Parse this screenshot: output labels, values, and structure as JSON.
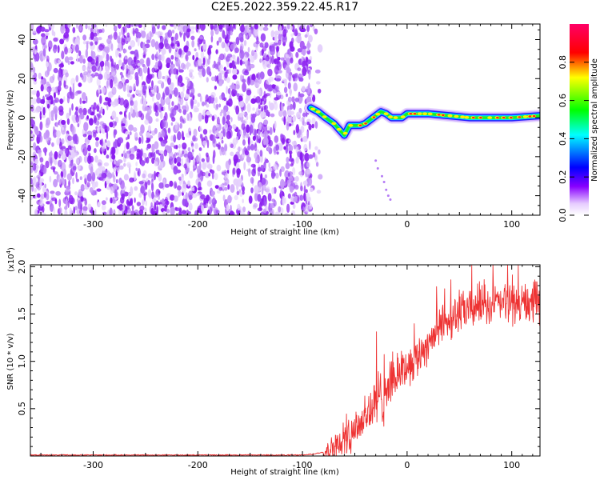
{
  "title": "C2E5.2022.359.22.45.R17",
  "chart_data": [
    {
      "type": "heatmap",
      "xlabel": "Height of straight line (km)",
      "ylabel": "Frequency (Hz)",
      "xlim": [
        -360,
        127
      ],
      "ylim": [
        -50,
        48
      ],
      "xticks": [
        -300,
        -200,
        -100,
        0,
        100
      ],
      "xtick_labels": [
        "-300",
        "-200",
        "-100",
        "0",
        "100"
      ],
      "yticks": [
        -40,
        -20,
        0,
        20,
        40
      ],
      "ytick_labels": [
        "-40",
        "-20",
        "0",
        "20",
        "40"
      ],
      "noise_region_x": [
        -360,
        -92
      ],
      "signal_track": {
        "x": [
          -92,
          -85,
          -78,
          -70,
          -65,
          -60,
          -55,
          -50,
          -45,
          -40,
          -35,
          -30,
          -25,
          -20,
          -15,
          -10,
          -5,
          0,
          20,
          40,
          60,
          80,
          100,
          127
        ],
        "y": [
          5,
          3,
          0,
          -3,
          -6,
          -9,
          -4,
          -4,
          -4,
          -3,
          -1,
          1,
          3,
          2,
          0,
          0,
          0,
          2,
          2,
          1,
          0,
          0,
          0,
          1
        ]
      },
      "colorbar": {
        "label": "Normalized spectral amplitude",
        "range": [
          0,
          1
        ],
        "ticks": [
          0.0,
          0.2,
          0.4,
          0.6,
          0.8
        ],
        "tick_labels": [
          "0.0",
          "0.2",
          "0.4",
          "0.6",
          "0.8"
        ],
        "colors": [
          "#ffffff",
          "#8800ff",
          "#0000ff",
          "#00ffff",
          "#00ff00",
          "#ffff00",
          "#ff0000",
          "#ff0066"
        ]
      }
    },
    {
      "type": "line",
      "xlabel": "Height of straight line (km)",
      "ylabel": "SNR (10 * v/v)",
      "exponent_label": "(x10",
      "exponent_power": "4",
      "xlim": [
        -360,
        127
      ],
      "ylim": [
        0,
        2.02
      ],
      "xticks": [
        -300,
        -200,
        -100,
        0,
        100
      ],
      "xtick_labels": [
        "-300",
        "-200",
        "-100",
        "0",
        "100"
      ],
      "yticks": [
        0.5,
        1.0,
        1.5,
        2.0
      ],
      "ytick_labels": [
        "0.5",
        "1.0",
        "1.5",
        "2.0"
      ],
      "color": "#ee3333",
      "series": [
        {
          "name": "SNR",
          "x": [
            -360,
            -300,
            -200,
            -120,
            -100,
            -90,
            -80,
            -70,
            -60,
            -50,
            -45,
            -40,
            -30,
            -20,
            -10,
            0,
            10,
            20,
            30,
            40,
            50,
            60,
            70,
            80,
            90,
            100,
            110,
            127
          ],
          "y": [
            0.01,
            0.01,
            0.01,
            0.01,
            0.01,
            0.02,
            0.04,
            0.1,
            0.2,
            0.3,
            0.35,
            0.42,
            0.55,
            0.7,
            0.85,
            0.95,
            1.05,
            1.2,
            1.35,
            1.45,
            1.5,
            1.55,
            1.6,
            1.6,
            1.62,
            1.62,
            1.6,
            1.62
          ]
        }
      ]
    }
  ]
}
